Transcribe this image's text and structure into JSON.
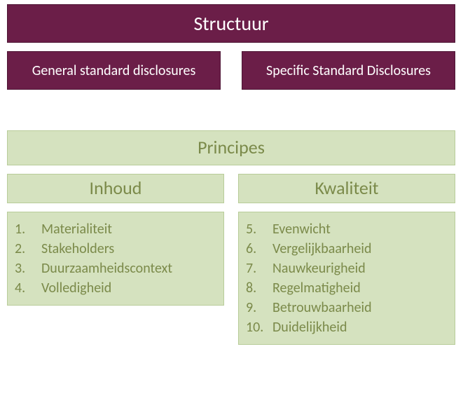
{
  "colors": {
    "maroon_bg": "#6b1e48",
    "maroon_border": "#4e1635",
    "white": "#ffffff",
    "green_bg": "#d5e2bf",
    "green_border": "#b8cc99",
    "olive_text": "#7b8a4a"
  },
  "font": {
    "title_size": 28,
    "sub_size": 20,
    "principes_size": 26,
    "pk_size": 26,
    "list_size": 20
  },
  "structuur": {
    "label": "Structuur"
  },
  "subs": {
    "left": "General standard disclosures",
    "right": "Specific Standard Disclosures"
  },
  "principes": {
    "label": "Principes"
  },
  "columns": {
    "left": {
      "title": "Inhoud"
    },
    "right": {
      "title": "Kwaliteit"
    }
  },
  "lists": {
    "left": [
      {
        "n": "1.",
        "t": "Materialiteit"
      },
      {
        "n": "2.",
        "t": "Stakeholders"
      },
      {
        "n": "3.",
        "t": "Duurzaamheidscontext"
      },
      {
        "n": "4.",
        "t": "Volledigheid"
      }
    ],
    "right": [
      {
        "n": "5.",
        "t": "Evenwicht"
      },
      {
        "n": "6.",
        "t": "Vergelijkbaarheid"
      },
      {
        "n": "7.",
        "t": "Nauwkeurigheid"
      },
      {
        "n": "8.",
        "t": "Regelmatigheid"
      },
      {
        "n": "9.",
        "t": "Betrouwbaarheid"
      },
      {
        "n": "10.",
        "t": "Duidelijkheid"
      }
    ]
  }
}
